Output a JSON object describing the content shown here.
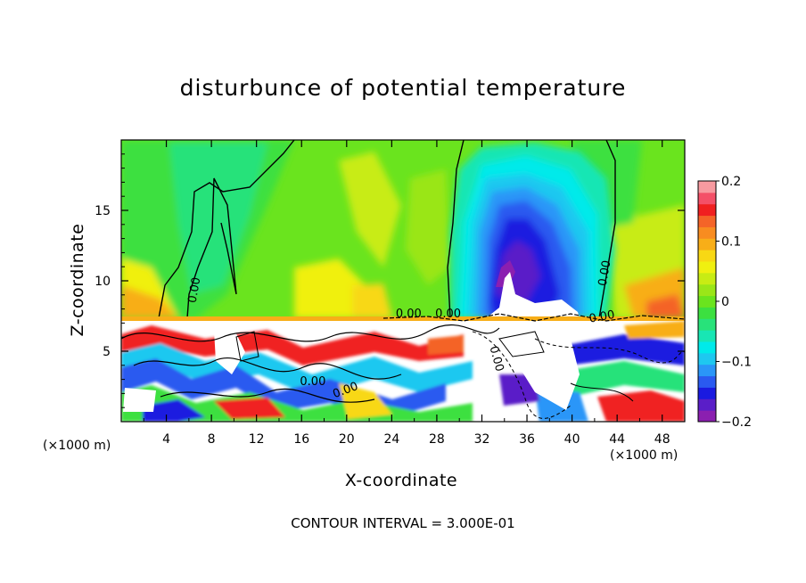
{
  "chart_data": {
    "type": "heatmap",
    "title": "disturbunce of potential temperature",
    "xlabel": "X-coordinate",
    "ylabel": "Z-coordinate",
    "x_unit_left": "(×1000 m)",
    "x_unit_right": "(×1000 m)",
    "xlim": [
      0,
      50
    ],
    "ylim": [
      0,
      20
    ],
    "x_ticks": [
      4,
      8,
      12,
      16,
      20,
      24,
      28,
      32,
      36,
      40,
      44,
      48
    ],
    "x_tick_labels": [
      "4",
      "8",
      "12",
      "16",
      "20",
      "24",
      "28",
      "32",
      "36",
      "40",
      "44",
      "48"
    ],
    "y_ticks": [
      5,
      10,
      15
    ],
    "y_tick_labels": [
      "5",
      "10",
      "15"
    ],
    "colorbar": {
      "range": [
        -0.2,
        0.2
      ],
      "ticks": [
        -0.2,
        -0.1,
        0,
        0.1,
        0.2
      ],
      "tick_labels": [
        "−0.2",
        "−0.1",
        "0",
        "0.1",
        "0.2"
      ],
      "colors": [
        "#8b1fb0",
        "#5a1ec8",
        "#1a1ae0",
        "#2a5af0",
        "#2a96f8",
        "#1ec8f0",
        "#00eaea",
        "#18e6b4",
        "#28e27a",
        "#3ce040",
        "#6ae41e",
        "#9ae618",
        "#c8ec14",
        "#f0f010",
        "#f8d814",
        "#f8ae18",
        "#f88c20",
        "#f46428",
        "#f02020",
        "#f45068",
        "#f79aa0"
      ]
    },
    "contour_labels": [
      "0.00",
      "0.00",
      "0.00",
      "0.00",
      "0.00",
      "0.00",
      "0.00",
      "0.00"
    ],
    "contour_interval": "CONTOUR INTERVAL = 3.000E-01",
    "grid": false,
    "legend": "colorbar right"
  }
}
